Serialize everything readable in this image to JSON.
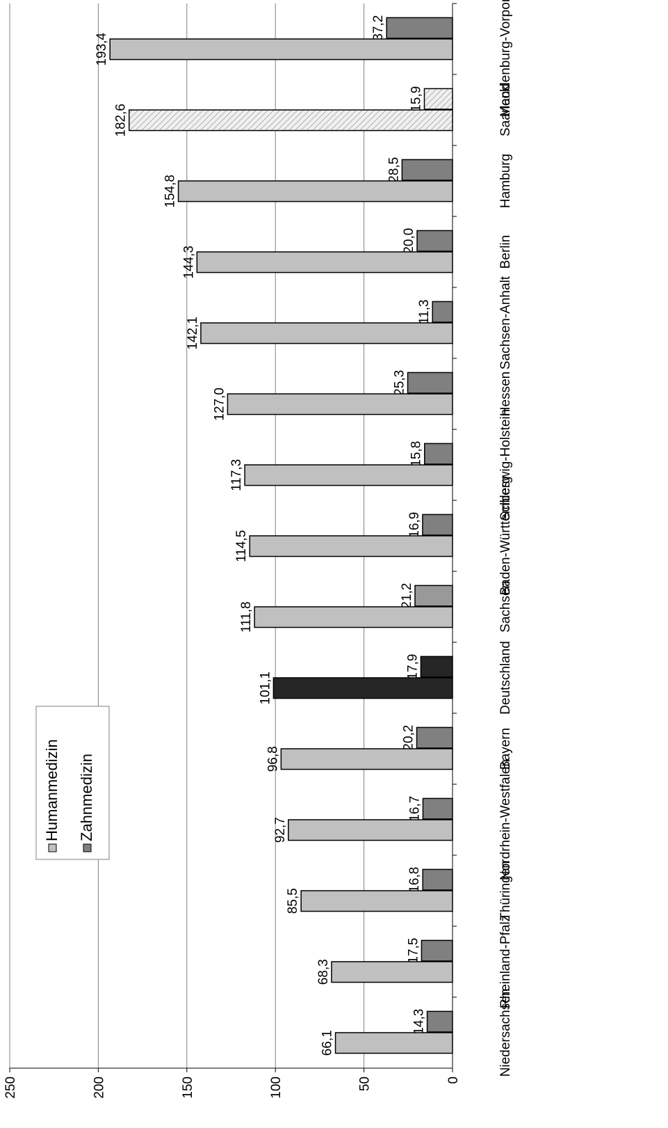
{
  "chart_data": {
    "type": "bar",
    "orientation": "horizontal",
    "categories": [
      "Niedersachsen",
      "Rheinland-Pfalz",
      "Thüringen",
      "Nordrhein-Westfalen",
      "Bayern",
      "Deutschland",
      "Sachsen",
      "Baden-Württemberg",
      "Schleswig-Holstein",
      "Hessen",
      "Sachsen-Anhalt",
      "Berlin",
      "Hamburg",
      "Saarland",
      "Mecklenburg-Vorpommern"
    ],
    "series": [
      {
        "name": "Humanmedizin",
        "color": "#c0c0c0",
        "values": [
          66.1,
          68.3,
          85.5,
          92.7,
          96.8,
          101.1,
          111.8,
          114.5,
          117.3,
          127.0,
          142.1,
          144.3,
          154.8,
          182.6,
          193.4
        ],
        "value_labels": [
          "66,1",
          "68,3",
          "85,5",
          "92,7",
          "96,8",
          "101,1",
          "111,8",
          "114,5",
          "117,3",
          "127,0",
          "142,1",
          "144,3",
          "154,8",
          "182,6",
          "193,4"
        ],
        "colors": [
          "#c0c0c0",
          "#c0c0c0",
          "#c0c0c0",
          "#c0c0c0",
          "#c0c0c0",
          "#262626",
          "#c0c0c0",
          "#c0c0c0",
          "#c0c0c0",
          "#c0c0c0",
          "#c0c0c0",
          "#c0c0c0",
          "#c0c0c0",
          "url(#hatch)",
          "#c0c0c0"
        ]
      },
      {
        "name": "Zahnmedizin",
        "color": "#808080",
        "values": [
          14.3,
          17.5,
          16.8,
          16.7,
          20.2,
          17.9,
          21.2,
          16.9,
          15.8,
          25.3,
          11.3,
          20.0,
          28.5,
          15.9,
          37.2
        ],
        "value_labels": [
          "14,3",
          "17,5",
          "16,8",
          "16,7",
          "20,2",
          "17,9",
          "21,2",
          "16,9",
          "15,8",
          "25,3",
          "11,3",
          "20,0",
          "28,5",
          "15,9",
          "37,2"
        ],
        "colors": [
          "#808080",
          "#808080",
          "#808080",
          "#808080",
          "#808080",
          "#262626",
          "#999999",
          "#808080",
          "#808080",
          "#808080",
          "#808080",
          "#808080",
          "#808080",
          "url(#hatch)",
          "#808080"
        ]
      }
    ],
    "ylim": [
      0,
      250
    ],
    "yticks": [
      0,
      50,
      100,
      150,
      200,
      250
    ],
    "grid": true
  }
}
